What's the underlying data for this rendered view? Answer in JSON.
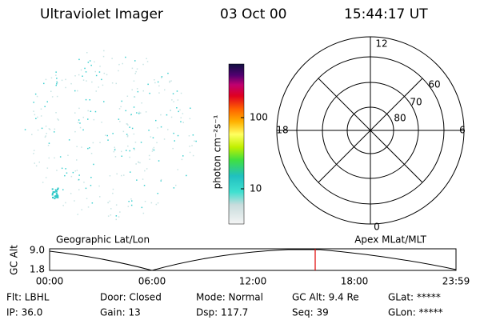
{
  "header": {
    "title": "Ultraviolet Imager",
    "date": "03 Oct 00",
    "time": "15:44:17 UT"
  },
  "colorbar": {
    "label": "photon cm⁻²s⁻¹",
    "ticks": [
      "100",
      "10"
    ]
  },
  "polar": {
    "hour_labels": [
      "12",
      "0",
      "18",
      "6"
    ],
    "lat_labels": [
      "60",
      "70",
      "80"
    ]
  },
  "altitude_plot": {
    "left_title": "Geographic Lat/Lon",
    "right_title": "Apex MLat/MLT",
    "y_label": "GC Alt",
    "y_ticks": [
      "9.0",
      "1.8"
    ],
    "x_ticks": [
      "00:00",
      "06:00",
      "12:00",
      "18:00",
      "23:59"
    ]
  },
  "info": {
    "rows": [
      [
        "Flt: LBHL",
        "Door: Closed",
        "Mode: Normal",
        "GC Alt: 9.4 Re",
        "GLat: *****"
      ],
      [
        "IP: 36.0",
        "Gain: 13",
        "Dsp: 117.7",
        "Seq: 39",
        "GLon: *****"
      ]
    ]
  }
}
